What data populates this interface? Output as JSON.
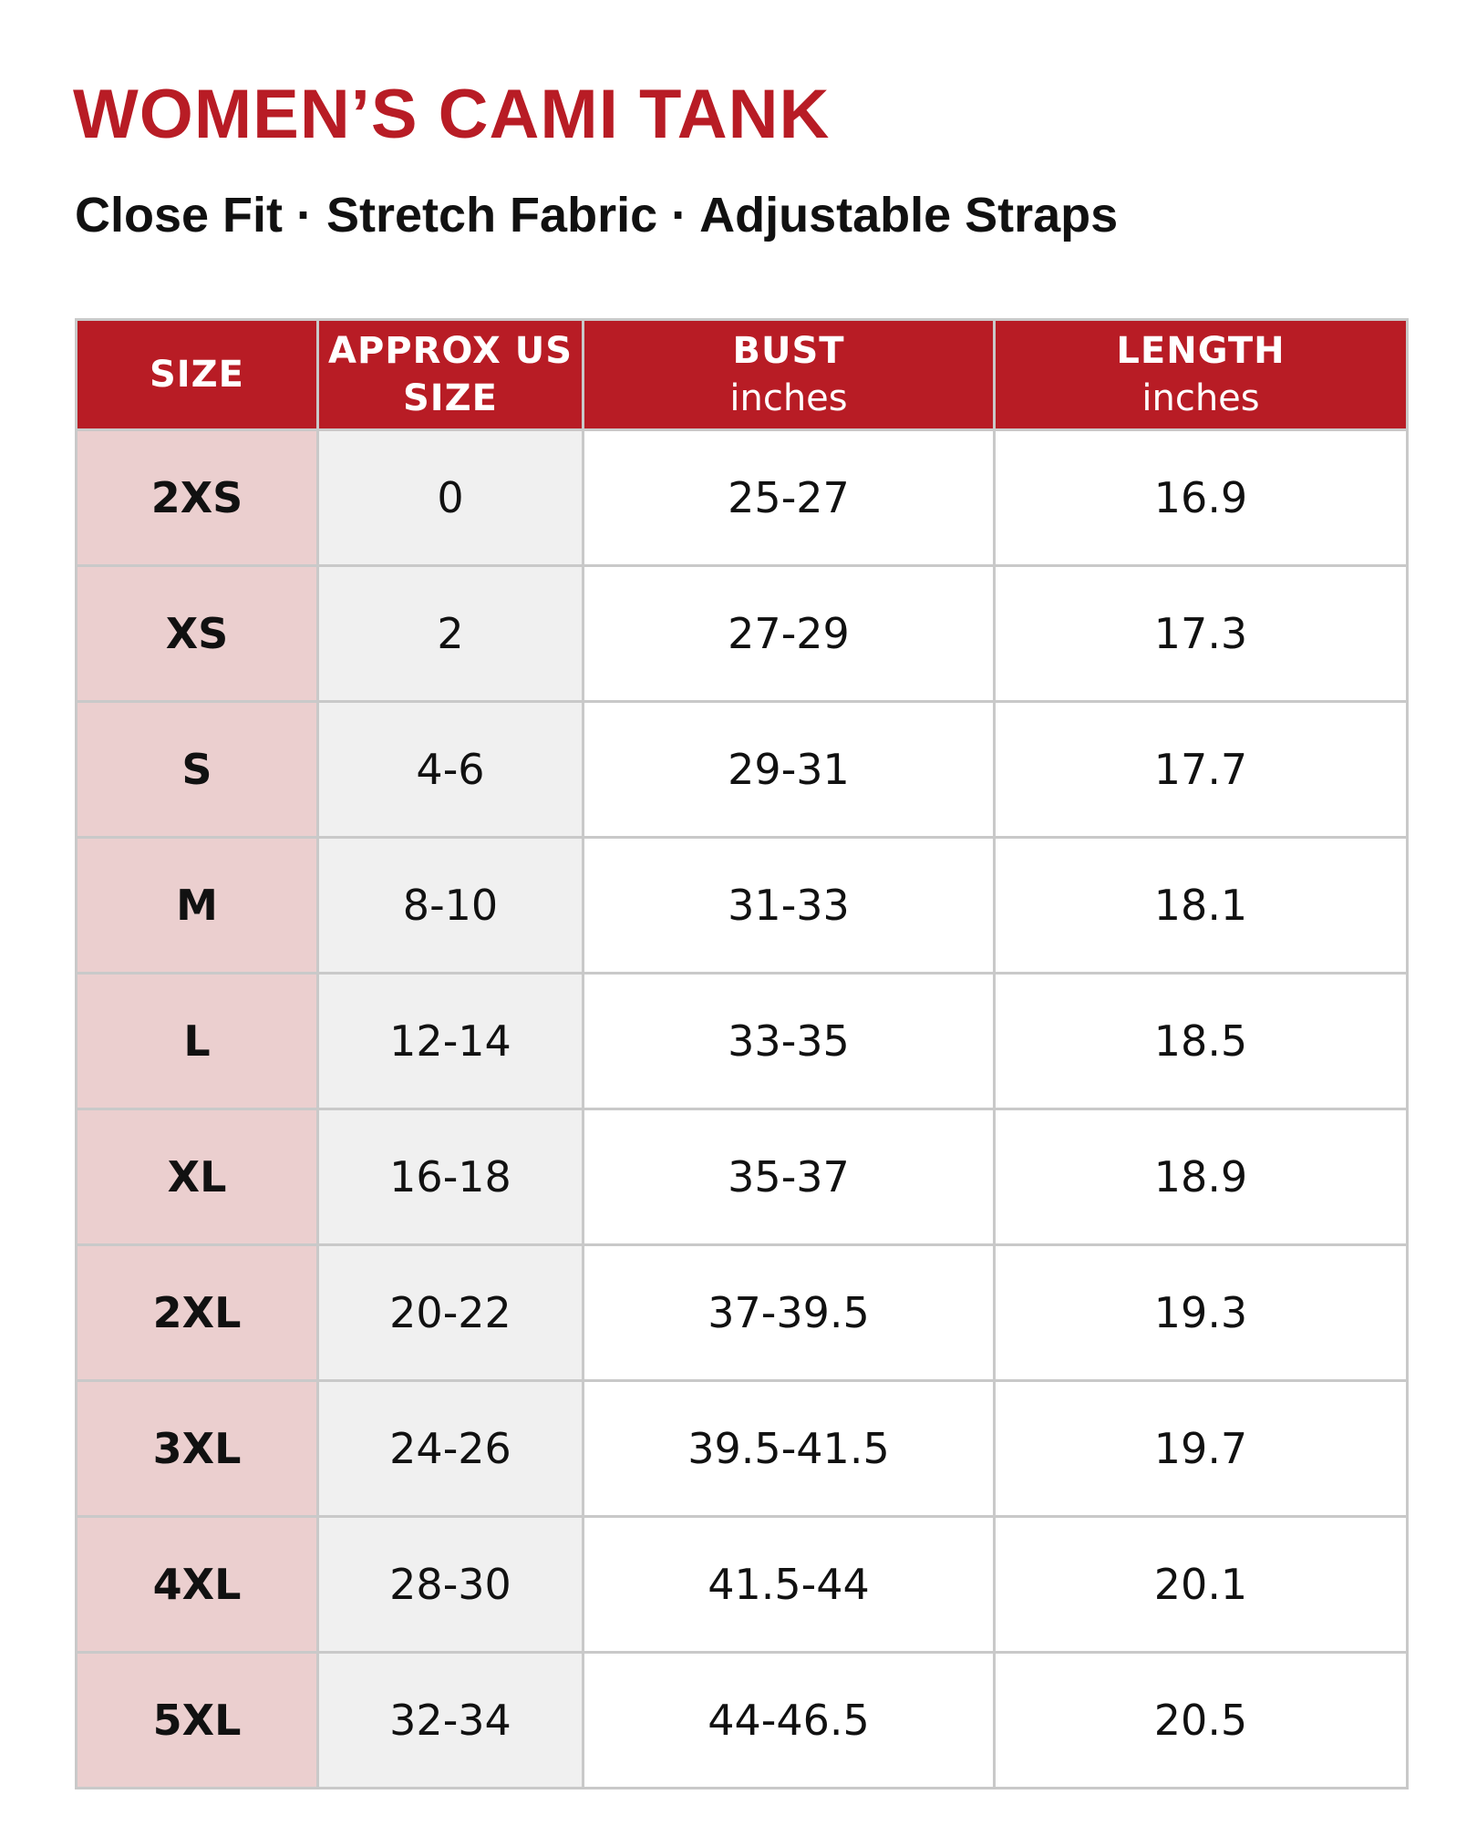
{
  "title": "WOMEN’S CAMI TANK",
  "subtitle": "Close Fit · Stretch Fabric · Adjustable Straps",
  "table": {
    "headers": [
      {
        "label": "SIZE"
      },
      {
        "label": "APPROX US SIZE"
      },
      {
        "label": "BUST",
        "unit": "inches"
      },
      {
        "label": "LENGTH",
        "unit": "inches"
      }
    ],
    "rows": [
      [
        "2XS",
        "0",
        "25-27",
        "16.9"
      ],
      [
        "XS",
        "2",
        "27-29",
        "17.3"
      ],
      [
        "S",
        "4-6",
        "29-31",
        "17.7"
      ],
      [
        "M",
        "8-10",
        "31-33",
        "18.1"
      ],
      [
        "L",
        "12-14",
        "33-35",
        "18.5"
      ],
      [
        "XL",
        "16-18",
        "35-37",
        "18.9"
      ],
      [
        "2XL",
        "20-22",
        "37-39.5",
        "19.3"
      ],
      [
        "3XL",
        "24-26",
        "39.5-41.5",
        "19.7"
      ],
      [
        "4XL",
        "28-30",
        "41.5-44",
        "20.1"
      ],
      [
        "5XL",
        "32-34",
        "44-46.5",
        "20.5"
      ]
    ]
  }
}
